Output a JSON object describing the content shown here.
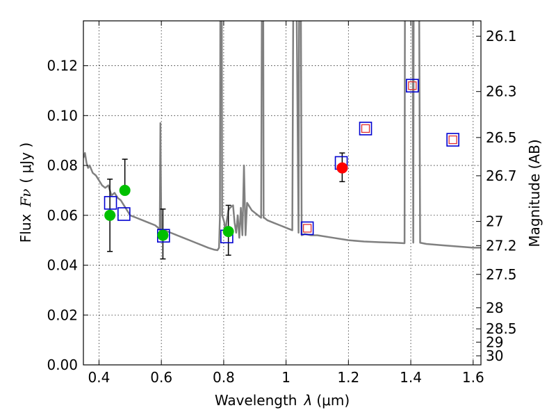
{
  "chart_data": {
    "type": "scatter",
    "xlabel_text": "Wavelength",
    "xlabel_symbol": "λ",
    "xlabel_unit": "(μm)",
    "ylabel_text": "Flux",
    "ylabel_symbol": "Fν",
    "ylabel_unit": "( μJy )",
    "y2label": "Magnitude (AB)",
    "xlim": [
      0.35,
      1.625
    ],
    "ylim": [
      0.0,
      0.138
    ],
    "x_ticks": [
      0.4,
      0.6,
      0.8,
      1.0,
      1.2,
      1.4,
      1.6
    ],
    "x_tick_labels": [
      "0.4",
      "0.6",
      "0.8",
      "1",
      "1.2",
      "1.4",
      "1.6"
    ],
    "y_ticks": [
      0.0,
      0.02,
      0.04,
      0.06,
      0.08,
      0.1,
      0.12
    ],
    "y_tick_labels": [
      "0.00",
      "0.02",
      "0.04",
      "0.06",
      "0.08",
      "0.10",
      "0.12"
    ],
    "y2_ticks": [
      26.1,
      26.3,
      26.5,
      26.7,
      27,
      27.2,
      27.5,
      28,
      28.5,
      29,
      30
    ],
    "y2_tick_labels": [
      "26.1",
      "26.3",
      "26.5",
      "26.7",
      "27",
      "27.2",
      "27.5",
      "28",
      "28.5",
      "29",
      "30"
    ],
    "grid": true,
    "colors": {
      "model": "#808080",
      "green": "#00c000",
      "red": "#ff0000",
      "blue_square": "#0000d0",
      "red_square": "#e03030",
      "errorbar": "#000000"
    },
    "model_spectrum": {
      "name": "SED model",
      "x": [
        0.35,
        0.355,
        0.36,
        0.365,
        0.37,
        0.38,
        0.39,
        0.4,
        0.41,
        0.42,
        0.43,
        0.44,
        0.45,
        0.46,
        0.47,
        0.48,
        0.49,
        0.5,
        0.52,
        0.54,
        0.56,
        0.58,
        0.59,
        0.595,
        0.597,
        0.6,
        0.602,
        0.61,
        0.63,
        0.65,
        0.67,
        0.69,
        0.71,
        0.73,
        0.75,
        0.77,
        0.78,
        0.785,
        0.788,
        0.79,
        0.793,
        0.795,
        0.8,
        0.802,
        0.805,
        0.81,
        0.815,
        0.82,
        0.83,
        0.835,
        0.84,
        0.845,
        0.85,
        0.855,
        0.86,
        0.865,
        0.87,
        0.875,
        0.88,
        0.885,
        0.89,
        0.9,
        0.91,
        0.92,
        0.924,
        0.926,
        0.928,
        0.93,
        0.94,
        0.96,
        0.98,
        1.0,
        1.02,
        1.025,
        1.028,
        1.03,
        1.04,
        1.043,
        1.046,
        1.05,
        1.06,
        1.08,
        1.1,
        1.15,
        1.2,
        1.25,
        1.3,
        1.35,
        1.38,
        1.382,
        1.385,
        1.4,
        1.402,
        1.405,
        1.408,
        1.41,
        1.413,
        1.415,
        1.42,
        1.425,
        1.43,
        1.45,
        1.5,
        1.55,
        1.6,
        1.625
      ],
      "y": [
        0.083,
        0.085,
        0.081,
        0.079,
        0.08,
        0.077,
        0.076,
        0.074,
        0.072,
        0.071,
        0.072,
        0.068,
        0.069,
        0.067,
        0.066,
        0.064,
        0.062,
        0.06,
        0.059,
        0.058,
        0.057,
        0.056,
        0.055,
        0.054,
        0.097,
        0.053,
        0.053,
        0.054,
        0.053,
        0.052,
        0.051,
        0.05,
        0.049,
        0.048,
        0.047,
        0.0462,
        0.046,
        0.047,
        0.06,
        0.2,
        0.2,
        0.06,
        0.058,
        0.057,
        0.053,
        0.058,
        0.062,
        0.063,
        0.064,
        0.057,
        0.053,
        0.06,
        0.051,
        0.063,
        0.052,
        0.08,
        0.052,
        0.065,
        0.064,
        0.063,
        0.062,
        0.061,
        0.06,
        0.059,
        0.2,
        0.2,
        0.059,
        0.059,
        0.058,
        0.057,
        0.056,
        0.055,
        0.054,
        0.2,
        0.2,
        0.2,
        0.053,
        0.2,
        0.2,
        0.052,
        0.0525,
        0.052,
        0.052,
        0.051,
        0.05,
        0.0495,
        0.0492,
        0.049,
        0.0488,
        0.2,
        0.2,
        0.2,
        0.2,
        0.2,
        0.049,
        0.2,
        0.2,
        0.2,
        0.2,
        0.2,
        0.049,
        0.0485,
        0.048,
        0.0475,
        0.047,
        0.047
      ]
    },
    "series": [
      {
        "name": "green circles",
        "marker": "circle",
        "x": [
          0.435,
          0.483,
          0.605,
          0.815
        ],
        "y": [
          0.06,
          0.07,
          0.052,
          0.0535
        ],
        "err_low": [
          0.0145,
          0.0,
          0.0095,
          0.0095
        ],
        "err_high": [
          0.0145,
          0.0125,
          0.0105,
          0.0105
        ]
      },
      {
        "name": "red circle",
        "marker": "circle",
        "x": [
          1.18
        ],
        "y": [
          0.079
        ],
        "err_low": [
          0.0055
        ],
        "err_high": [
          0.006
        ]
      },
      {
        "name": "blue squares",
        "marker": "square-open",
        "x": [
          0.437,
          0.48,
          0.607,
          0.81,
          1.068,
          1.177,
          1.255,
          1.405,
          1.535
        ],
        "y": [
          0.065,
          0.0605,
          0.0518,
          0.0515,
          0.0548,
          0.081,
          0.0948,
          0.112,
          0.0903
        ]
      },
      {
        "name": "red squares",
        "marker": "square-open-small",
        "x": [
          1.068,
          1.255,
          1.405,
          1.535
        ],
        "y": [
          0.0548,
          0.0948,
          0.112,
          0.0903
        ]
      }
    ]
  }
}
